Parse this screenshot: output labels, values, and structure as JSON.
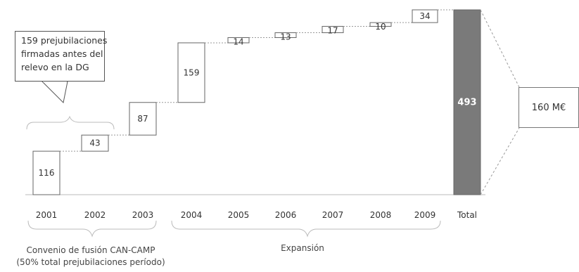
{
  "chart_data": {
    "type": "bar",
    "subtype": "waterfall",
    "categories": [
      "2001",
      "2002",
      "2003",
      "2004",
      "2005",
      "2006",
      "2007",
      "2008",
      "2009",
      "Total"
    ],
    "values": [
      116,
      43,
      87,
      159,
      14,
      13,
      17,
      10,
      34,
      493
    ],
    "total_label": "493",
    "colors": {
      "bar_fill": "#ffffff",
      "bar_stroke": "#666666",
      "total_fill": "#7a7a7a",
      "total_label": "#ffffff",
      "connector": "#999999"
    }
  },
  "annotations": {
    "callout_lines": [
      "159 prejubilaciones",
      "firmadas antes del",
      "relevo en la DG"
    ],
    "total_value_box": "160 M€",
    "group_1_lines": [
      "Convenio de fusión CAN-CAMP",
      "(50% total prejubilaciones período)"
    ],
    "group_2": "Expansión"
  }
}
